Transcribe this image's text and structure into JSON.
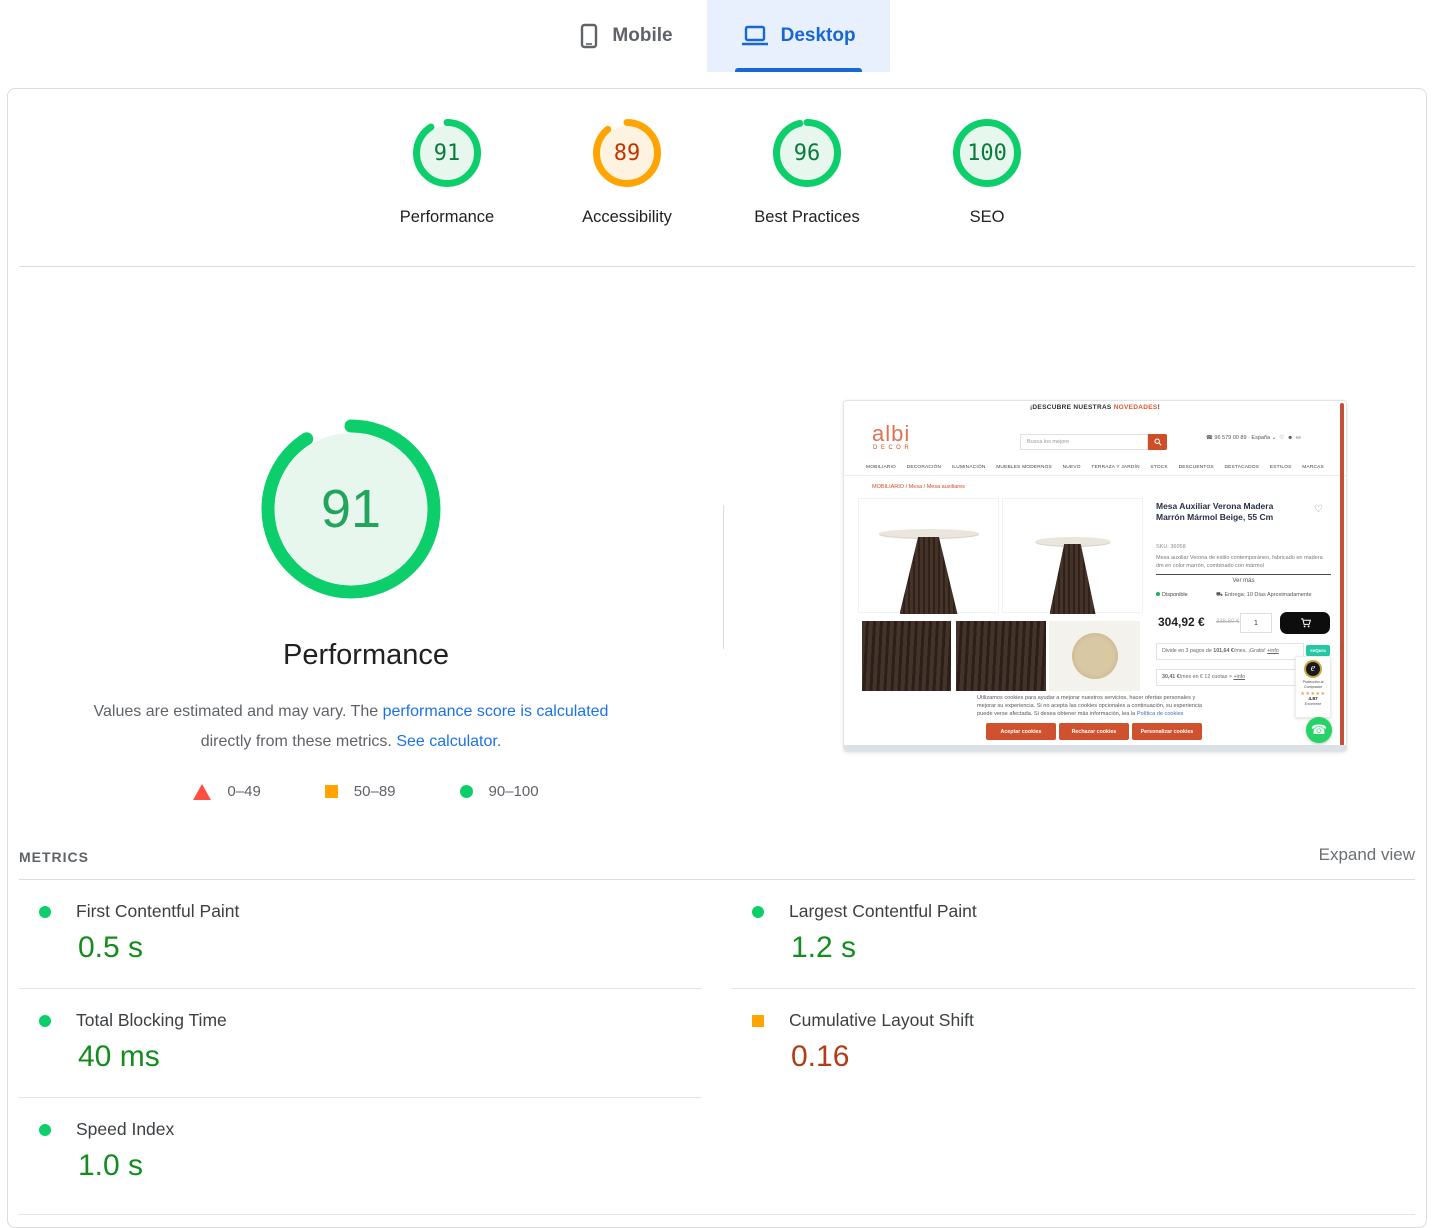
{
  "colors": {
    "pass_ring": "#0cce6b",
    "pass_fill": "#e7f7ee",
    "pass_num": "#087c3c",
    "average_ring": "#ffa400",
    "average_fill": "#fdf3e0",
    "average_num": "#c33300",
    "fail": "#ff4e42",
    "link": "#1a73e8",
    "tab_blue": "#1967d2"
  },
  "tabs": {
    "mobile": "Mobile",
    "desktop": "Desktop"
  },
  "gauges": [
    {
      "label": "Performance",
      "score": "91",
      "status": "pass"
    },
    {
      "label": "Accessibility",
      "score": "89",
      "status": "average"
    },
    {
      "label": "Best Practices",
      "score": "96",
      "status": "pass"
    },
    {
      "label": "SEO",
      "score": "100",
      "status": "pass"
    }
  ],
  "performance": {
    "score": "91",
    "title": "Performance",
    "desc_1": "Values are estimated and may vary. The ",
    "link_1": "performance score is calculated",
    "desc_2": "directly from these metrics. ",
    "link_2": "See calculator."
  },
  "legend": [
    {
      "shape": "triangle",
      "label": "0–49"
    },
    {
      "shape": "square",
      "label": "50–89"
    },
    {
      "shape": "circle",
      "label": "90–100"
    }
  ],
  "metrics": {
    "heading": "METRICS",
    "expand_label": "Expand view",
    "columns": [
      [
        {
          "label": "First Contentful Paint",
          "value": "0.5 s",
          "status": "pass"
        },
        {
          "label": "Total Blocking Time",
          "value": "40 ms",
          "status": "pass"
        },
        {
          "label": "Speed Index",
          "value": "1.0 s",
          "status": "pass"
        }
      ],
      [
        {
          "label": "Largest Contentful Paint",
          "value": "1.2 s",
          "status": "pass"
        },
        {
          "label": "Cumulative Layout Shift",
          "value": "0.16",
          "status": "average"
        }
      ]
    ]
  },
  "screenshot": {
    "banner_prefix": "¡DESCUBRE NUESTRAS ",
    "banner_highlight": "NOVEDADES",
    "banner_suffix": "!",
    "logo_main": "albi",
    "logo_sub": "DECOR",
    "search_placeholder": "Busca los mejore",
    "phone": "96 579 00 89",
    "locale": "España",
    "nav": [
      "MOBILIARIO",
      "DECORACIÓN",
      "ILUMINACIÓN",
      "MUEBLES MODERNOS",
      "NUEVO",
      "TERRAZA Y JARDÍN",
      "STOCK",
      "DESCUENTOS",
      "DESTACADOS",
      "ESTILOS",
      "MARCAS"
    ],
    "breadcrumb": "MOBILIARIO / Mesa / Mesa auxiliares",
    "product_title": "Mesa Auxiliar Verona Madera Marrón Mármol Beige, 55 Cm",
    "sku": "SKU: 36058",
    "description": "Mesa auxiliar Verona de estilo contemporáneo, fabricado en madera dm en color marrón, combinado con mármol",
    "ver_mas": "Ver más",
    "available": "Disponible",
    "delivery": "Entrega: 10 Días Aproximadamente",
    "price": "304,92 €",
    "old_price": "338,80 €",
    "qty": "1",
    "fin1_a": "Divide en 3 pagos de ",
    "fin1_b": "101,64 €",
    "fin1_c": "/mes. ¡Gratis! ",
    "fin1_link": "+info",
    "fin_badge": "seQura",
    "fin2_a": "30,41 €",
    "fin2_b": "/mes en € 12 cuotas > ",
    "fin2_link": "+info",
    "trust_label": "Protección al Comprador",
    "trust_stars": "★★★★★",
    "trust_score": "4.87",
    "trust_rating": "Excelente",
    "cookie_text": "Utilizamos cookies para ayudar a mejorar nuestros servicios, hacer ofertas personales y mejorar su experiencia. Si no acepta las cookies opcionales a continuación, su experiencia puede verse afectada. Si desea obtener más información, lea la ",
    "cookie_link": "Política de cookies",
    "cookie_buttons": [
      "Aceptar cookies",
      "Rechazar cookies",
      "Personalizar cookies"
    ]
  }
}
